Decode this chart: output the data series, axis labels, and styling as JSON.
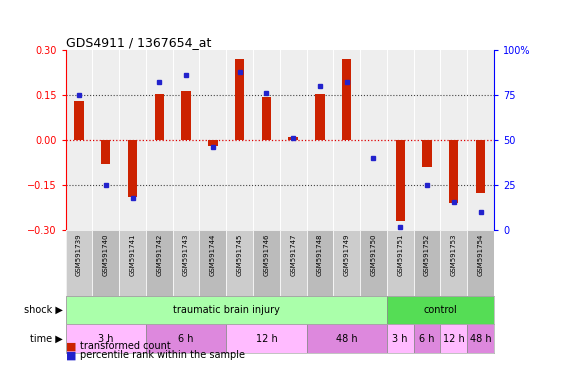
{
  "title": "GDS4911 / 1367654_at",
  "samples": [
    "GSM591739",
    "GSM591740",
    "GSM591741",
    "GSM591742",
    "GSM591743",
    "GSM591744",
    "GSM591745",
    "GSM591746",
    "GSM591747",
    "GSM591748",
    "GSM591749",
    "GSM591750",
    "GSM591751",
    "GSM591752",
    "GSM591753",
    "GSM591754"
  ],
  "bar_values": [
    0.13,
    -0.08,
    -0.19,
    0.155,
    0.165,
    -0.02,
    0.27,
    0.145,
    0.01,
    0.155,
    0.27,
    0.0,
    -0.27,
    -0.09,
    -0.21,
    -0.175
  ],
  "blue_values": [
    75,
    25,
    18,
    82,
    86,
    46,
    88,
    76,
    51,
    80,
    82,
    40,
    2,
    25,
    16,
    10
  ],
  "ylim": [
    -0.3,
    0.3
  ],
  "yticks_left": [
    -0.3,
    -0.15,
    0.0,
    0.15,
    0.3
  ],
  "yticks_right": [
    0,
    25,
    50,
    75,
    100
  ],
  "bar_color": "#cc2200",
  "blue_color": "#2222cc",
  "hline_color": "#dd0000",
  "dotted_color": "#444444",
  "bg_color": "#ffffff",
  "plot_bg": "#eeeeee",
  "label_bg": "#cccccc",
  "shock_groups": [
    {
      "label": "traumatic brain injury",
      "start": 0,
      "end": 11,
      "color": "#aaffaa"
    },
    {
      "label": "control",
      "start": 12,
      "end": 15,
      "color": "#55dd55"
    }
  ],
  "time_groups": [
    {
      "label": "3 h",
      "start": 0,
      "end": 2,
      "color": "#ffbbff"
    },
    {
      "label": "6 h",
      "start": 3,
      "end": 5,
      "color": "#dd88dd"
    },
    {
      "label": "12 h",
      "start": 6,
      "end": 8,
      "color": "#ffbbff"
    },
    {
      "label": "48 h",
      "start": 9,
      "end": 11,
      "color": "#dd88dd"
    },
    {
      "label": "3 h",
      "start": 12,
      "end": 12,
      "color": "#ffbbff"
    },
    {
      "label": "6 h",
      "start": 13,
      "end": 13,
      "color": "#dd88dd"
    },
    {
      "label": "12 h",
      "start": 14,
      "end": 14,
      "color": "#ffbbff"
    },
    {
      "label": "48 h",
      "start": 15,
      "end": 15,
      "color": "#dd88dd"
    }
  ],
  "shock_label": "shock",
  "time_label": "time"
}
